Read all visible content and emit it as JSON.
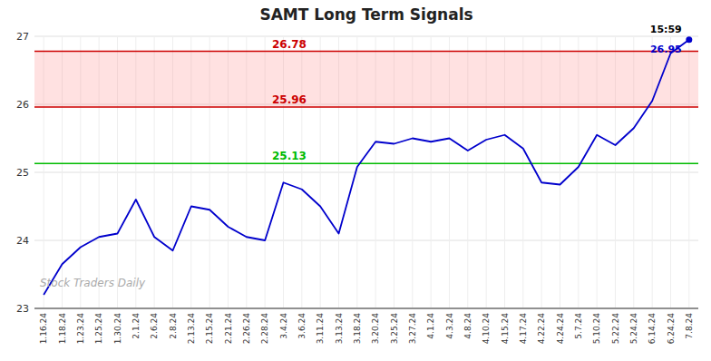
{
  "chart_data": {
    "type": "line",
    "title": "SAMT Long Term Signals",
    "watermark": "Stock Traders Daily",
    "categories": [
      "1.16.24",
      "1.18.24",
      "1.23.24",
      "1.25.24",
      "1.30.24",
      "2.1.24",
      "2.6.24",
      "2.8.24",
      "2.13.24",
      "2.15.24",
      "2.21.24",
      "2.26.24",
      "2.28.24",
      "3.4.24",
      "3.6.24",
      "3.11.24",
      "3.13.24",
      "3.18.24",
      "3.20.24",
      "3.25.24",
      "3.27.24",
      "4.1.24",
      "4.3.24",
      "4.8.24",
      "4.10.24",
      "4.15.24",
      "4.17.24",
      "4.22.24",
      "4.24.24",
      "5.7.24",
      "5.10.24",
      "5.22.24",
      "5.24.24",
      "6.14.24",
      "6.24.24",
      "7.8.24"
    ],
    "values": [
      23.2,
      23.65,
      23.9,
      24.05,
      24.1,
      24.6,
      24.05,
      23.85,
      24.5,
      24.45,
      24.2,
      24.05,
      24.0,
      24.85,
      24.75,
      24.5,
      24.1,
      25.08,
      25.45,
      25.42,
      25.5,
      25.45,
      25.5,
      25.32,
      25.48,
      25.55,
      25.35,
      24.85,
      24.82,
      25.08,
      25.55,
      25.4,
      25.65,
      26.05,
      26.75,
      26.95
    ],
    "color": "#0000cc",
    "ylim": [
      23,
      27
    ],
    "yticks": [
      23,
      24,
      25,
      26,
      27
    ],
    "grid": true,
    "reference_lines": [
      {
        "value": 25.13,
        "label": "25.13",
        "color": "#00bb00"
      },
      {
        "value": 25.96,
        "label": "25.96",
        "color": "#cc0000"
      },
      {
        "value": 26.78,
        "label": "26.78",
        "color": "#cc0000"
      }
    ],
    "band": {
      "from": 25.96,
      "to": 26.78,
      "color": "#ff8888"
    },
    "last_point": {
      "value": 26.95,
      "label": "26.95",
      "time": "15:59"
    }
  }
}
